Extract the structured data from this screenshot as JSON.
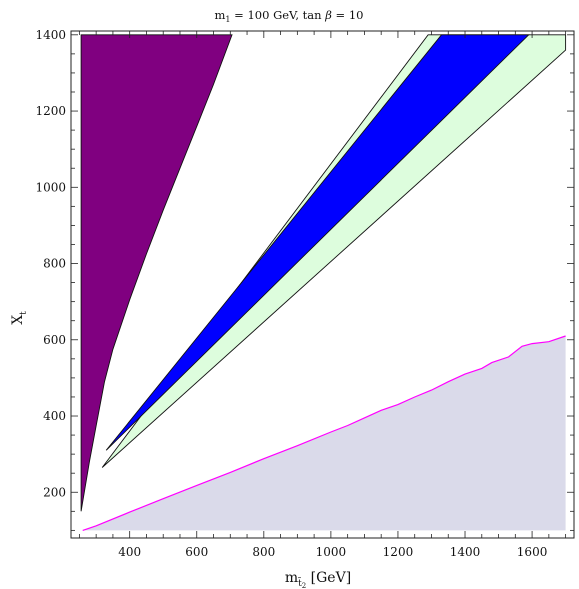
{
  "chart_data": {
    "type": "area",
    "title": {
      "m": "m",
      "m_sub": "1",
      "rest": " = 100 GeV, tan ",
      "beta": "β",
      "value": " = 10"
    },
    "xlabel": {
      "m": "m",
      "sub": "t̃",
      "sub2": "2",
      "unit": " [GeV]"
    },
    "ylabel": {
      "x": "X",
      "sub": "t"
    },
    "xlim": [
      225,
      1725
    ],
    "ylim": [
      80,
      1410
    ],
    "xticks": [
      400,
      600,
      800,
      1000,
      1200,
      1400,
      1600
    ],
    "yticks": [
      200,
      400,
      600,
      800,
      1000,
      1200,
      1400
    ],
    "colors": {
      "purple": "#800080",
      "blue": "#0000ff",
      "lightgreen": "#ddfddd",
      "lavender": "#dadaea",
      "magenta": "#ff00ff",
      "border": "#111111"
    },
    "regions": {
      "purple": {
        "left_edge": [
          [
            255,
            150
          ],
          [
            255,
            1400
          ],
          [
            705,
            1400
          ]
        ],
        "boundary": [
          [
            705,
            1400
          ],
          [
            650,
            1270
          ],
          [
            600,
            1160
          ],
          [
            550,
            1050
          ],
          [
            500,
            940
          ],
          [
            450,
            825
          ],
          [
            400,
            705
          ],
          [
            350,
            575
          ],
          [
            325,
            490
          ],
          [
            300,
            375
          ],
          [
            280,
            280
          ],
          [
            255,
            150
          ]
        ]
      },
      "green_band": [
        [
          318,
          265
        ],
        [
          1290,
          1400
        ],
        [
          1700,
          1400
        ],
        [
          1700,
          1360
        ],
        [
          318,
          265
        ]
      ],
      "blue_band": [
        [
          330,
          310
        ],
        [
          1330,
          1400
        ],
        [
          1590,
          1400
        ],
        [
          330,
          310
        ]
      ],
      "lavender": {
        "line": [
          [
            260,
            100
          ],
          [
            300,
            112
          ],
          [
            400,
            148
          ],
          [
            500,
            183
          ],
          [
            600,
            218
          ],
          [
            700,
            252
          ],
          [
            800,
            288
          ],
          [
            900,
            322
          ],
          [
            1000,
            358
          ],
          [
            1050,
            375
          ],
          [
            1100,
            395
          ],
          [
            1150,
            415
          ],
          [
            1200,
            430
          ],
          [
            1250,
            450
          ],
          [
            1300,
            468
          ],
          [
            1350,
            490
          ],
          [
            1400,
            510
          ],
          [
            1450,
            525
          ],
          [
            1480,
            540
          ],
          [
            1530,
            555
          ],
          [
            1570,
            583
          ],
          [
            1600,
            590
          ],
          [
            1650,
            595
          ],
          [
            1700,
            610
          ]
        ],
        "floor": 100
      }
    }
  }
}
